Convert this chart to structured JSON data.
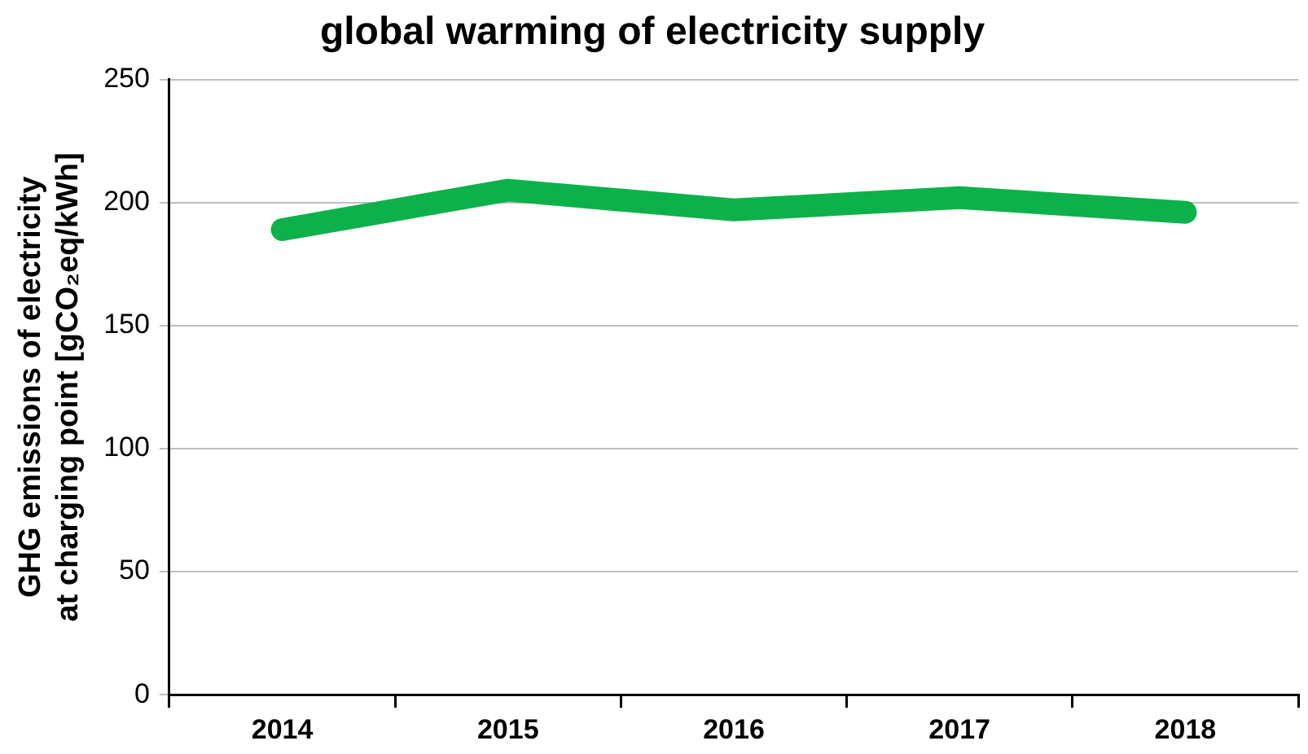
{
  "chart_data": {
    "type": "line",
    "title": "global warming of electricity supply",
    "ylabel": "GHG emissions of electricity at charging point [gCO₂eq/kWh]",
    "categories": [
      "2014",
      "2015",
      "2016",
      "2017",
      "2018"
    ],
    "series": [
      {
        "color": "#0db14b",
        "values": [
          189,
          205,
          197,
          202,
          196
        ]
      }
    ],
    "ylim": [
      0,
      250
    ],
    "yticks": [
      0,
      50,
      100,
      150,
      200,
      250
    ],
    "grid": "y",
    "legend": false,
    "marker": "none",
    "line_style": "solid"
  }
}
